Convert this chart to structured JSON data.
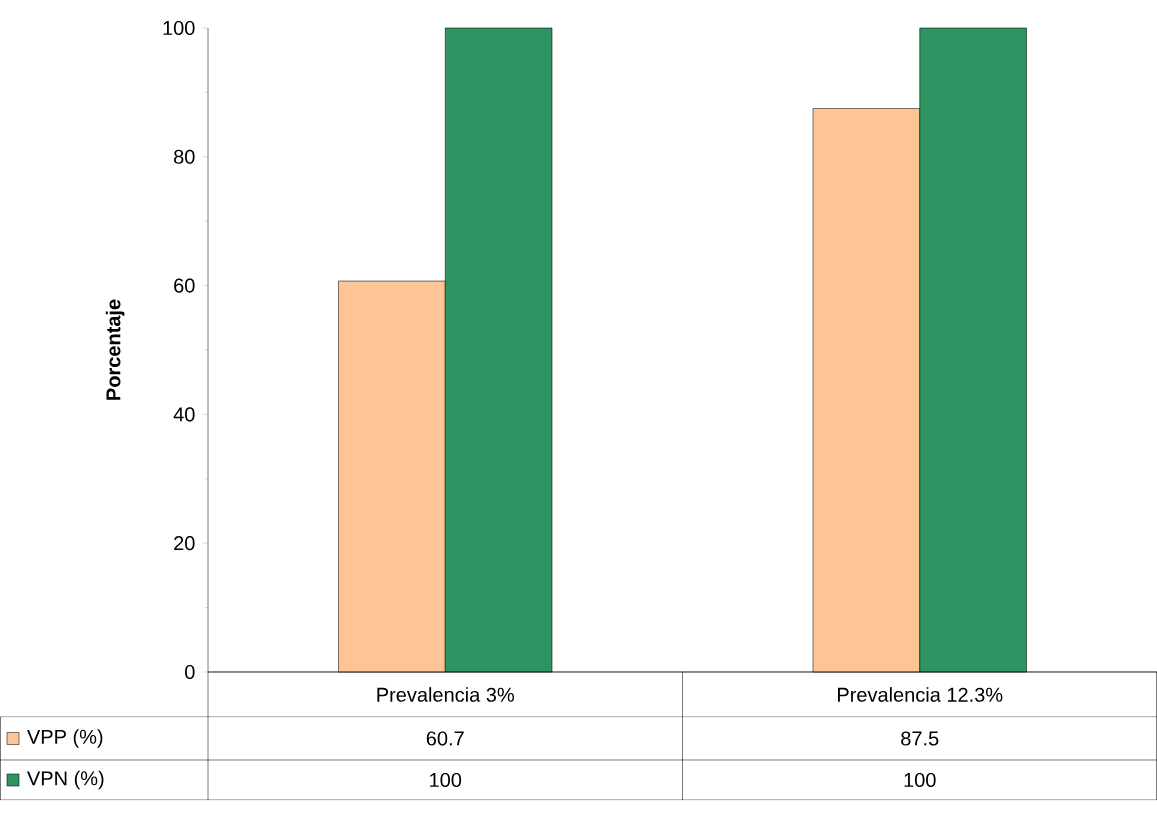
{
  "chart_data": {
    "type": "bar",
    "ylabel": "Porcentaje",
    "categories": [
      "Prevalencia 3%",
      "Prevalencia 12.3%"
    ],
    "series": [
      {
        "name": "VPP (%)",
        "color": "#fdc596",
        "values": [
          60.7,
          87.5
        ]
      },
      {
        "name": "VPN (%)",
        "color": "#2e9462",
        "values": [
          100,
          100
        ]
      }
    ],
    "ylim": [
      0,
      100
    ],
    "yticks": [
      0,
      20,
      40,
      60,
      80,
      100
    ],
    "data_labels": true,
    "legend": "bottom left",
    "grid": false
  }
}
